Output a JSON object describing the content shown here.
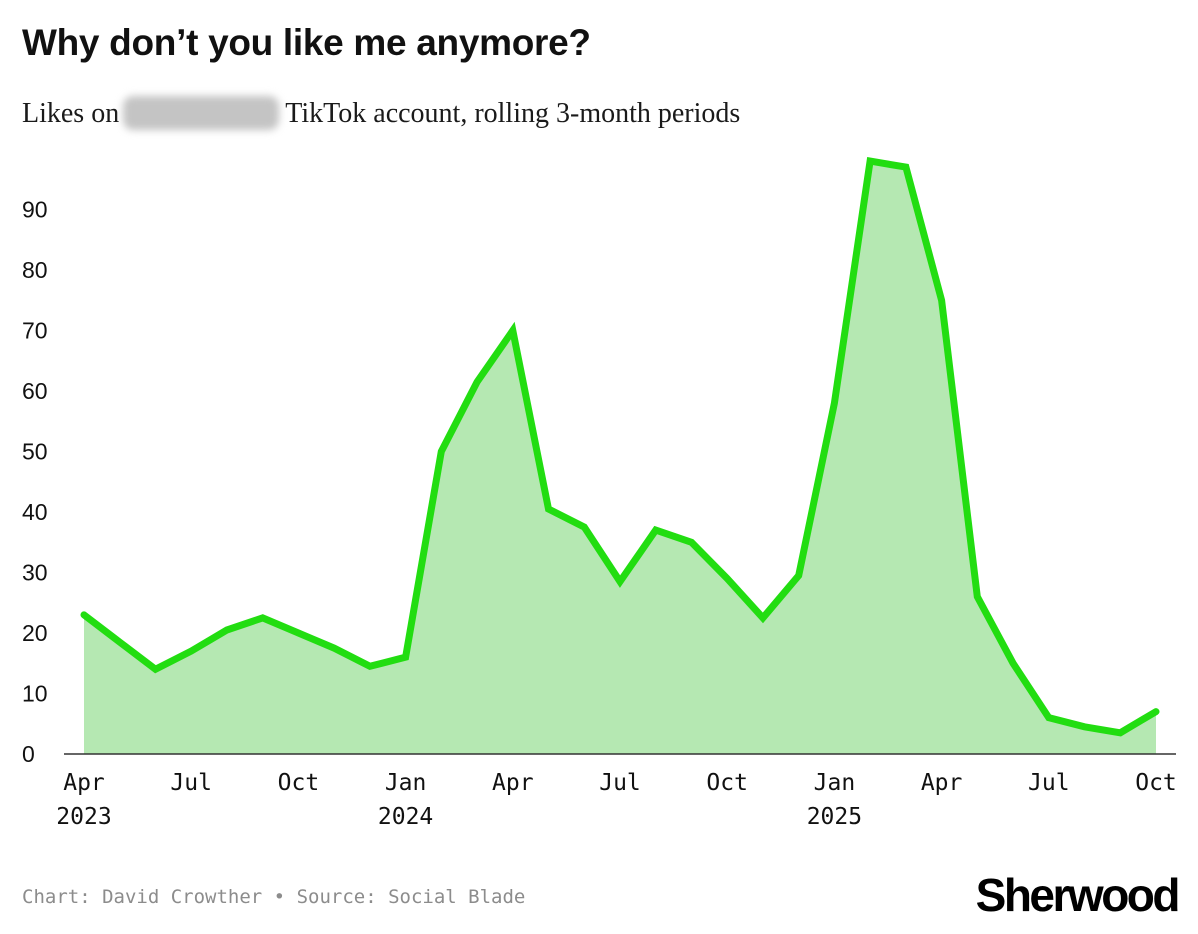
{
  "header": {
    "title": "Why don’t you like me anymore?",
    "subtitle_before": "Likes on",
    "subtitle_after": "TikTok account, rolling 3-month periods"
  },
  "footer": {
    "credit": "Chart: David Crowther",
    "separator": "•",
    "source": "Source: Social Blade",
    "logo": "Sherwood"
  },
  "colors": {
    "line": "#22dd11",
    "fill": "#b5e8b2",
    "axis": "#333333",
    "text": "#111111"
  },
  "chart_data": {
    "type": "area",
    "title": "Why don’t you like me anymore?",
    "xlabel": "",
    "ylabel": "",
    "ylim": [
      0,
      100
    ],
    "xlim": [
      "2023-04",
      "2025-10"
    ],
    "yticks": [
      0,
      10,
      20,
      30,
      40,
      50,
      60,
      70,
      80,
      90
    ],
    "xticks": [
      {
        "x": "2023-04",
        "label": "Apr",
        "year": "2023"
      },
      {
        "x": "2023-07",
        "label": "Jul",
        "year": ""
      },
      {
        "x": "2023-10",
        "label": "Oct",
        "year": ""
      },
      {
        "x": "2024-01",
        "label": "Jan",
        "year": "2024"
      },
      {
        "x": "2024-04",
        "label": "Apr",
        "year": ""
      },
      {
        "x": "2024-07",
        "label": "Jul",
        "year": ""
      },
      {
        "x": "2024-10",
        "label": "Oct",
        "year": ""
      },
      {
        "x": "2025-01",
        "label": "Jan",
        "year": "2025"
      },
      {
        "x": "2025-04",
        "label": "Apr",
        "year": ""
      },
      {
        "x": "2025-07",
        "label": "Jul",
        "year": ""
      },
      {
        "x": "2025-10",
        "label": "Oct",
        "year": ""
      }
    ],
    "grid": false,
    "legend": "none",
    "series": [
      {
        "x": [
          "2023-04",
          "2023-05",
          "2023-06",
          "2023-07",
          "2023-08",
          "2023-09",
          "2023-10",
          "2023-11",
          "2023-12",
          "2024-01",
          "2024-02",
          "2024-03",
          "2024-04",
          "2024-05",
          "2024-06",
          "2024-07",
          "2024-08",
          "2024-09",
          "2024-10",
          "2024-11",
          "2024-12",
          "2025-01",
          "2025-02",
          "2025-03",
          "2025-04",
          "2025-05",
          "2025-06",
          "2025-07",
          "2025-08",
          "2025-09",
          "2025-10"
        ],
        "values": [
          23,
          18.5,
          14,
          17,
          20.5,
          22.5,
          20,
          17.5,
          14.5,
          16,
          50,
          61.5,
          70,
          40.5,
          37.5,
          28.5,
          37,
          35,
          29,
          22.5,
          29.5,
          58,
          98,
          97,
          75,
          26,
          15,
          6,
          4.5,
          3.5,
          7
        ]
      }
    ]
  }
}
